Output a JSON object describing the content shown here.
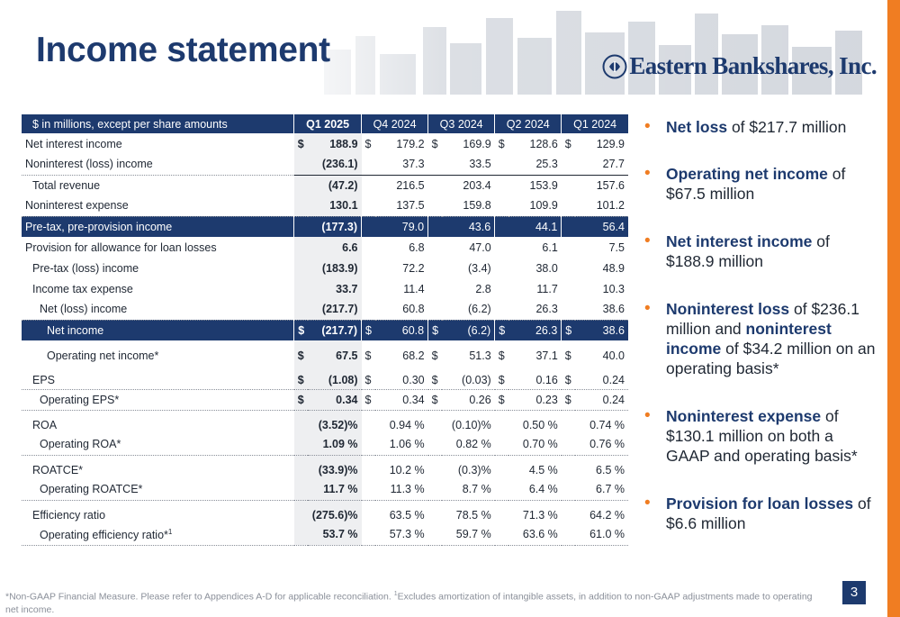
{
  "page": {
    "title": "Income statement",
    "logo_text": "Eastern Bankshares, Inc.",
    "page_number": "3",
    "footnote_a": "*Non-GAAP Financial Measure. Please refer to Appendices A-D for applicable reconciliation. ",
    "footnote_sup": "1",
    "footnote_b": "Excludes amortization of intangible assets, in addition to non-GAAP adjustments made to operating net income."
  },
  "colors": {
    "navy": "#1d3a6e",
    "orange": "#f07d22",
    "shade": "#eeeff1"
  },
  "table": {
    "header_label": "$ in millions, except per share amounts",
    "periods": [
      "Q1 2025",
      "Q4 2024",
      "Q3 2024",
      "Q2 2024",
      "Q1 2024"
    ],
    "rows": [
      {
        "label": "Net interest income",
        "indent": 0,
        "values": [
          "188.9",
          "179.2",
          "169.9",
          "128.6",
          "129.9"
        ],
        "dollar": true
      },
      {
        "label": "Noninterest (loss) income",
        "indent": 0,
        "values": [
          "(236.1)",
          "37.3",
          "33.5",
          "25.3",
          "27.7"
        ]
      },
      {
        "label": "Total revenue",
        "indent": 1,
        "values": [
          "(47.2)",
          "216.5",
          "203.4",
          "153.9",
          "157.6"
        ]
      },
      {
        "label": "Noninterest expense",
        "indent": 0,
        "values": [
          "130.1",
          "137.5",
          "159.8",
          "109.9",
          "101.2"
        ]
      },
      {
        "label": "Pre-tax, pre-provision income",
        "indent": 0,
        "values": [
          "(177.3)",
          "79.0",
          "43.6",
          "44.1",
          "56.4"
        ]
      },
      {
        "label": "Provision for allowance for loan losses",
        "indent": 0,
        "values": [
          "6.6",
          "6.8",
          "47.0",
          "6.1",
          "7.5"
        ]
      },
      {
        "label": "Pre-tax (loss) income",
        "indent": 1,
        "values": [
          "(183.9)",
          "72.2",
          "(3.4)",
          "38.0",
          "48.9"
        ]
      },
      {
        "label": "Income tax expense",
        "indent": 1,
        "values": [
          "33.7",
          "11.4",
          "2.8",
          "11.7",
          "10.3"
        ]
      },
      {
        "label": "Net (loss) income",
        "indent": 2,
        "values": [
          "(217.7)",
          "60.8",
          "(6.2)",
          "26.3",
          "38.6"
        ]
      },
      {
        "label": "Net income",
        "indent": 3,
        "values": [
          "(217.7)",
          "60.8",
          "(6.2)",
          "26.3",
          "38.6"
        ],
        "dollar": true
      },
      {
        "label": "Operating net income*",
        "indent": 3,
        "values": [
          "67.5",
          "68.2",
          "51.3",
          "37.1",
          "40.0"
        ],
        "dollar": true
      },
      {
        "label": "EPS",
        "indent": 1,
        "values": [
          "(1.08)",
          "0.30",
          "(0.03)",
          "0.16",
          "0.24"
        ],
        "dollar": true
      },
      {
        "label": "Operating EPS*",
        "indent": 2,
        "values": [
          "0.34",
          "0.34",
          "0.26",
          "0.23",
          "0.24"
        ],
        "dollar": true
      },
      {
        "label": "ROA",
        "indent": 1,
        "values": [
          "(3.52)%",
          "0.94 %",
          "(0.10)%",
          "0.50 %",
          "0.74 %"
        ]
      },
      {
        "label": "Operating ROA*",
        "indent": 2,
        "values": [
          "1.09 %",
          "1.06 %",
          "0.82 %",
          "0.70 %",
          "0.76 %"
        ]
      },
      {
        "label": "ROATCE*",
        "indent": 1,
        "values": [
          "(33.9)%",
          "10.2 %",
          "(0.3)%",
          "4.5 %",
          "6.5 %"
        ]
      },
      {
        "label": "Operating ROATCE*",
        "indent": 2,
        "values": [
          "11.7 %",
          "11.3 %",
          "8.7 %",
          "6.4 %",
          "6.7 %"
        ]
      },
      {
        "label": "Efficiency ratio",
        "indent": 1,
        "values": [
          "(275.6)%",
          "63.5 %",
          "78.5 %",
          "71.3 %",
          "64.2 %"
        ]
      },
      {
        "label": "Operating efficiency ratio*",
        "indent": 2,
        "values": [
          "53.7 %",
          "57.3 %",
          "59.7 %",
          "63.6 %",
          "61.0 %"
        ],
        "sup": "1"
      }
    ]
  },
  "bullets": [
    {
      "bold": "Net loss",
      "text": " of $217.7 million"
    },
    {
      "bold": "Operating net income",
      "text": " of $67.5 million"
    },
    {
      "bold": "Net interest income",
      "text": " of $188.9 million"
    },
    {
      "bold": "Noninterest loss",
      "text": " of $236.1 million and ",
      "bold2": "noninterest income",
      "text2": " of $34.2 million on an operating basis*"
    },
    {
      "bold": "Noninterest expense",
      "text": " of $130.1 million on both a GAAP and operating basis*"
    },
    {
      "bold": "Provision for loan losses",
      "text": " of $6.6 million"
    }
  ]
}
